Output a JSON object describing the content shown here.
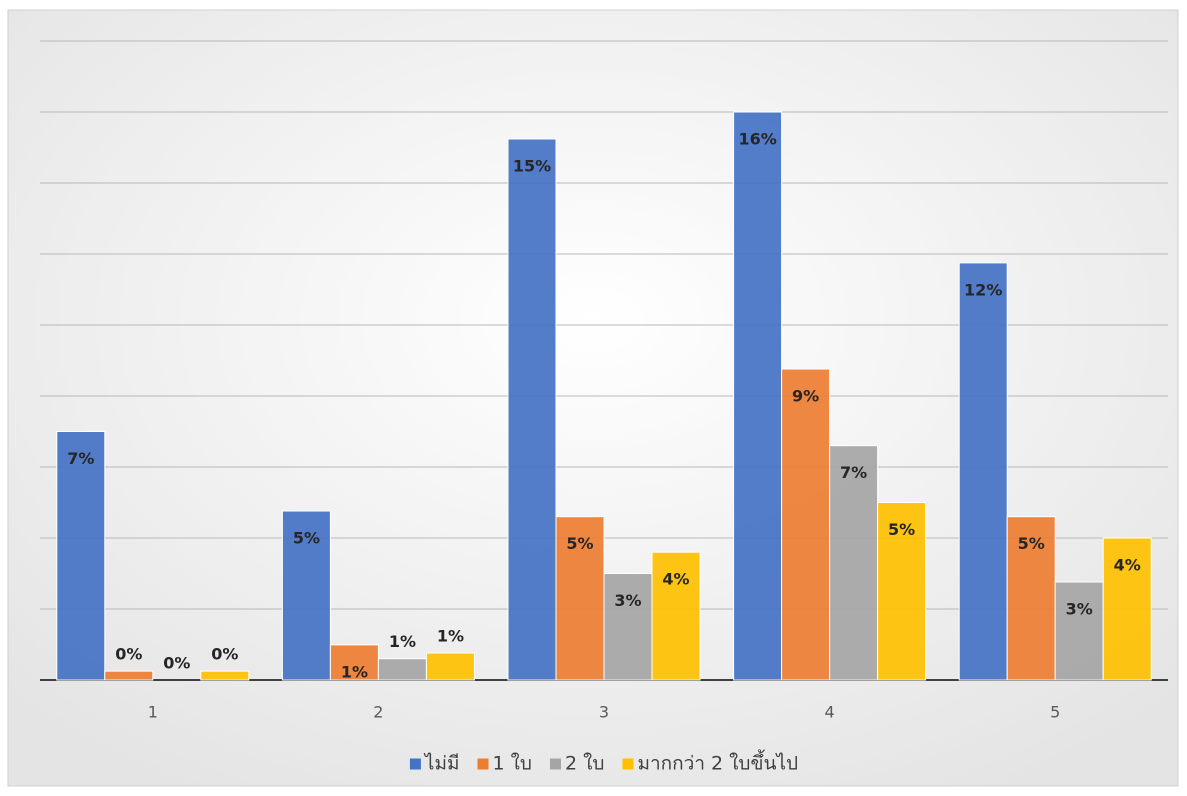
{
  "chart_data": {
    "type": "bar",
    "categories": [
      "1",
      "2",
      "3",
      "4",
      "5"
    ],
    "series": [
      {
        "name": "ไม่มี",
        "color": "#4472c4",
        "values": [
          7.0,
          4.76,
          15.24,
          16.0,
          11.75
        ],
        "value_labels": [
          "7%",
          "5%",
          "15%",
          "16%",
          "12%"
        ]
      },
      {
        "name": "1 ใบ",
        "color": "#ed7d31",
        "values": [
          0.25,
          0.99,
          4.6,
          8.76,
          4.6
        ],
        "value_labels": [
          "0%",
          "1%",
          "5%",
          "9%",
          "5%"
        ]
      },
      {
        "name": "2 ใบ",
        "color": "#a5a5a5",
        "values": [
          0,
          0.6,
          3.0,
          6.6,
          2.76
        ],
        "value_labels": [
          "0%",
          "1%",
          "3%",
          "7%",
          "3%"
        ]
      },
      {
        "name": "มากกว่า 2 ใบขึ้นไป",
        "color": "#ffc000",
        "values": [
          0.25,
          0.76,
          3.6,
          5.0,
          4.0
        ],
        "value_labels": [
          "0%",
          "1%",
          "4%",
          "5%",
          "4%"
        ]
      }
    ],
    "ylim": [
      0,
      18
    ],
    "yticks": [
      0,
      2,
      4,
      6,
      8,
      10,
      12,
      14,
      16,
      18
    ],
    "ytick_labels": false,
    "grid": true,
    "legend": "bottom"
  }
}
